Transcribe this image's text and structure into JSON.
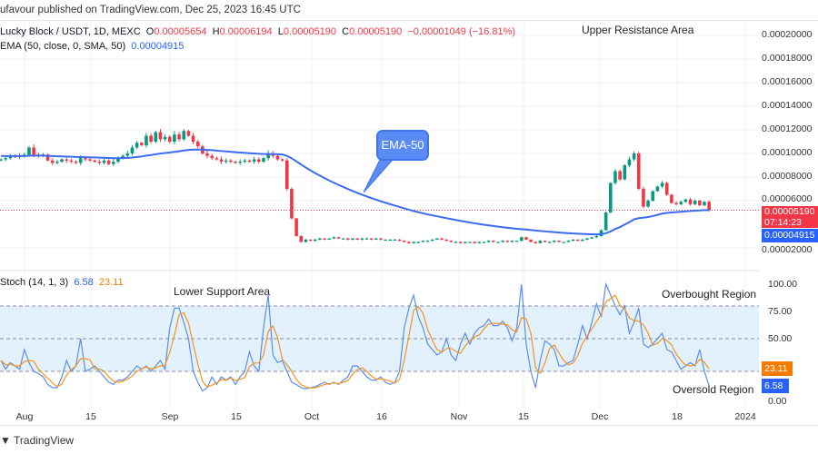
{
  "header": {
    "published": "ufavour published on TradingView.com, Dec 25, 2023 16:45 UTC"
  },
  "legend": {
    "symbol": "Lucky Block / USDT, 1D, MEXC",
    "o_label": "O",
    "o": "0.00005654",
    "h_label": "H",
    "h": "0.00006194",
    "l_label": "L",
    "l": "0.00005190",
    "c_label": "C",
    "c": "0.00005190",
    "change": "−0.00001049 (−16.81%)",
    "ema_label": "EMA (50, close, 0, SMA, 50)",
    "ema_value": "0.00004915",
    "stoch_label": "Stoch (14, 1, 3)",
    "stoch_k": "6.58",
    "stoch_d": "23.11"
  },
  "annotations": {
    "upper": "Upper Resistance Area",
    "ema_callout": "EMA-50",
    "lower": "Lower Support Area",
    "overbought": "Overbought Region",
    "oversold": "Oversold Region"
  },
  "price_tags": {
    "last": "0.00005190",
    "countdown": "07:14:23",
    "ema": "0.00004915",
    "stoch_d": "23.11",
    "stoch_k": "6.58"
  },
  "footer": {
    "brand": "TradingView"
  },
  "colors": {
    "up": "#089981",
    "down": "#f23645",
    "ema": "#3b6cf0",
    "stoch_k": "#5b8def",
    "stoch_d": "#f7931a",
    "band": "#e3f1fd"
  },
  "chart_data": [
    {
      "type": "candlestick",
      "title": "Lucky Block / USDT, 1D, MEXC",
      "date_range": [
        "2023-07-27",
        "2023-12-25"
      ],
      "y_ticks": [
        "0.00020000",
        "0.00018000",
        "0.00016000",
        "0.00014000",
        "0.00012000",
        "0.00010000",
        "0.00008000",
        "0.00006000",
        "0.00002000"
      ],
      "x_ticks": [
        "Aug",
        "15",
        "Sep",
        "15",
        "Oct",
        "16",
        "Nov",
        "15",
        "Dec",
        "18",
        "2024"
      ],
      "ylim": [
        1e-05,
        0.00021
      ],
      "closes": [
        9.5e-05,
        9.6e-05,
        9.8e-05,
        9.7e-05,
        9.8e-05,
        9.9e-05,
        0.000105,
        9.9e-05,
        9.8e-05,
        9.9e-05,
        9.4e-05,
        9.2e-05,
        9.3e-05,
        9.5e-05,
        9.4e-05,
        9.3e-05,
        9.2e-05,
        9.6e-05,
        9.5e-05,
        9.4e-05,
        9.3e-05,
        9.2e-05,
        9.4e-05,
        9.1e-05,
        9.3e-05,
        9.6e-05,
        9.8e-05,
        0.0001,
        0.000105,
        0.000109,
        0.000107,
        0.000115,
        0.00011,
        0.000118,
        0.000112,
        0.000114,
        0.00011,
        0.000116,
        0.000112,
        0.000119,
        0.000115,
        0.00011,
        0.000106,
        0.0001,
        9.8e-05,
        9.6e-05,
        9.5e-05,
        9.3e-05,
        9.4e-05,
        9.3e-05,
        9.2e-05,
        9.3e-05,
        9.4e-05,
        9.3e-05,
        9.5e-05,
        9.3e-05,
        9.6e-05,
        0.0001,
        9.8e-05,
        9.5e-05,
        9.4e-05,
        7e-05,
        4.5e-05,
        3e-05,
        2.5e-05,
        2.7e-05,
        2.6e-05,
        2.7e-05,
        2.8e-05,
        2.7e-05,
        2.8e-05,
        2.9e-05,
        2.8e-05,
        2.8e-05,
        2.7e-05,
        2.8e-05,
        2.7e-05,
        2.8e-05,
        2.8e-05,
        2.7e-05,
        2.8e-05,
        2.7e-05,
        2.7e-05,
        2.7e-05,
        2.7e-05,
        2.6e-05,
        2.5e-05,
        2.4e-05,
        2.5e-05,
        2.5e-05,
        2.6e-05,
        2.6e-05,
        2.7e-05,
        2.8e-05,
        2.7e-05,
        2.6e-05,
        2.5e-05,
        2.5e-05,
        2.4e-05,
        2.5e-05,
        2.5e-05,
        2.4e-05,
        2.5e-05,
        2.5e-05,
        2.6e-05,
        2.5e-05,
        2.5e-05,
        2.6e-05,
        2.5e-05,
        2.6e-05,
        2.6e-05,
        2.9e-05,
        2.7e-05,
        2.5e-05,
        2.4e-05,
        2.6e-05,
        2.5e-05,
        2.5e-05,
        2.6e-05,
        2.5e-05,
        2.5e-05,
        2.6e-05,
        2.7e-05,
        2.6e-05,
        2.7e-05,
        2.8e-05,
        2.9e-05,
        3e-05,
        3.5e-05,
        5e-05,
        7.5e-05,
        8.5e-05,
        7.8e-05,
        9e-05,
        9.5e-05,
        0.0001,
        7e-05,
        5.5e-05,
        6e-05,
        6.8e-05,
        7.2e-05,
        7.5e-05,
        6.5e-05,
        5.8e-05,
        5.7e-05,
        5.9e-05,
        6.1e-05,
        5.7e-05,
        6e-05,
        5.6e-05,
        5.9e-05,
        5.19e-05
      ],
      "ema50_last": 4.915e-05
    },
    {
      "type": "line",
      "title": "Stoch (14, 1, 3)",
      "ylim": [
        0,
        100
      ],
      "y_ticks": [
        "100.00",
        "75.00",
        "50.00",
        "0.00"
      ],
      "bands": [
        20,
        80
      ],
      "series": [
        {
          "name": "%K",
          "values": [
            30,
            22,
            28,
            25,
            22,
            40,
            28,
            20,
            18,
            15,
            8,
            5,
            5,
            15,
            30,
            20,
            25,
            50,
            20,
            22,
            25,
            20,
            15,
            10,
            8,
            12,
            12,
            15,
            20,
            25,
            22,
            25,
            20,
            25,
            30,
            22,
            60,
            78,
            78,
            65,
            50,
            20,
            10,
            2,
            5,
            15,
            8,
            15,
            12,
            15,
            8,
            15,
            20,
            38,
            25,
            20,
            60,
            90,
            35,
            28,
            30,
            20,
            10,
            8,
            5,
            4,
            5,
            6,
            8,
            10,
            8,
            10,
            8,
            12,
            15,
            25,
            25,
            20,
            15,
            12,
            12,
            15,
            10,
            8,
            10,
            20,
            60,
            78,
            90,
            70,
            60,
            45,
            40,
            35,
            38,
            50,
            35,
            30,
            45,
            55,
            45,
            55,
            60,
            62,
            68,
            62,
            62,
            66,
            60,
            48,
            60,
            100,
            45,
            20,
            5,
            30,
            48,
            45,
            40,
            25,
            25,
            28,
            30,
            45,
            62,
            50,
            65,
            82,
            70,
            100,
            90,
            80,
            72,
            80,
            55,
            65,
            78,
            45,
            42,
            45,
            50,
            55,
            40,
            38,
            30,
            22,
            25,
            28,
            25,
            40,
            20,
            6.58
          ]
        },
        {
          "name": "%D",
          "last": 23.11
        }
      ]
    }
  ]
}
